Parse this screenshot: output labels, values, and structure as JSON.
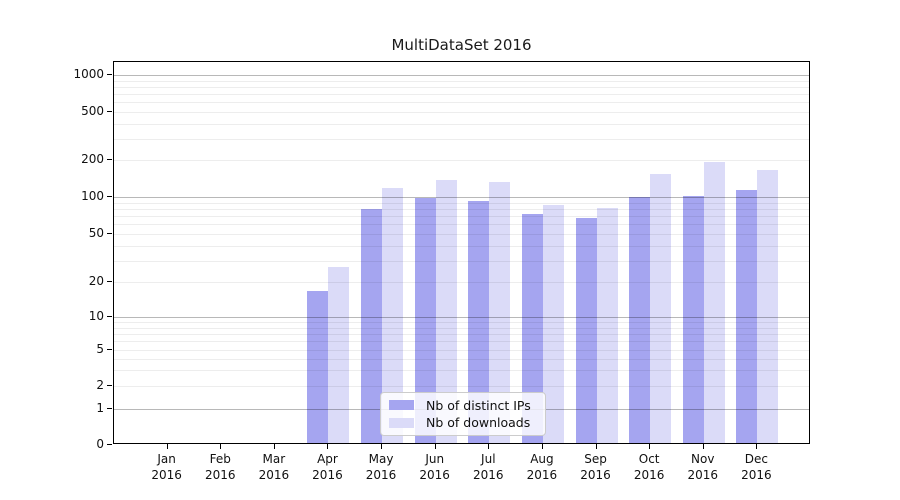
{
  "chart_data": {
    "type": "bar",
    "title": "MultiDataSet 2016",
    "x": [
      "Jan",
      "Feb",
      "Mar",
      "Apr",
      "May",
      "Jun",
      "Jul",
      "Aug",
      "Sep",
      "Oct",
      "Nov",
      "Dec"
    ],
    "year_label": "2016",
    "series": [
      {
        "name": "Nb of distinct IPs",
        "color": "#a5a5f0",
        "values": [
          0,
          0,
          0,
          16,
          78,
          96,
          90,
          71,
          66,
          97,
          100,
          110
        ]
      },
      {
        "name": "Nb of downloads",
        "color": "#dbdbf8",
        "values": [
          0,
          0,
          0,
          26,
          116,
          135,
          128,
          84,
          80,
          149,
          188,
          161
        ]
      }
    ],
    "yticks": [
      0,
      1,
      2,
      5,
      10,
      20,
      50,
      100,
      200,
      500,
      1000
    ],
    "yscale": "symlog",
    "ylim": [
      0,
      1260
    ],
    "grid": "on",
    "legend_position": "lower-center-inside",
    "xlabel": "",
    "ylabel": ""
  },
  "colors": {
    "bar_distinct_ips": "#a5a5f0",
    "bar_downloads": "#dbdbf8",
    "grid_minor": "rgba(0,0,0,0.07)",
    "grid_major": "rgba(0,0,0,0.28)",
    "axis": "#000000",
    "background": "#ffffff",
    "legend_border": "#cccccc"
  }
}
